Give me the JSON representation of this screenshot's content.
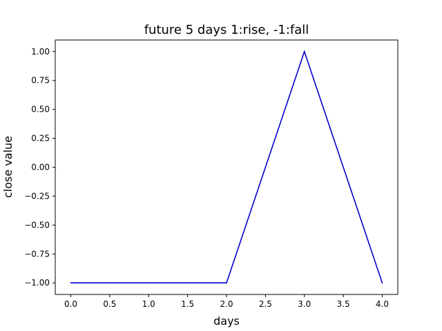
{
  "chart_data": {
    "type": "line",
    "title": "future 5 days  1:rise, -1:fall",
    "xlabel": "days",
    "ylabel": "close value",
    "xlim": [
      -0.2,
      4.2
    ],
    "ylim": [
      -1.1,
      1.1
    ],
    "x_ticks": [
      "0.0",
      "0.5",
      "1.0",
      "1.5",
      "2.0",
      "2.5",
      "3.0",
      "3.5",
      "4.0"
    ],
    "y_ticks": [
      "−1.00",
      "−0.75",
      "−0.50",
      "−0.25",
      "0.00",
      "0.25",
      "0.50",
      "0.75",
      "1.00"
    ],
    "grid": false,
    "series": [
      {
        "color": "#0000cc",
        "x": [
          0,
          1,
          2,
          3,
          4
        ],
        "y": [
          -1,
          -1,
          -1,
          1,
          -1
        ]
      }
    ]
  }
}
